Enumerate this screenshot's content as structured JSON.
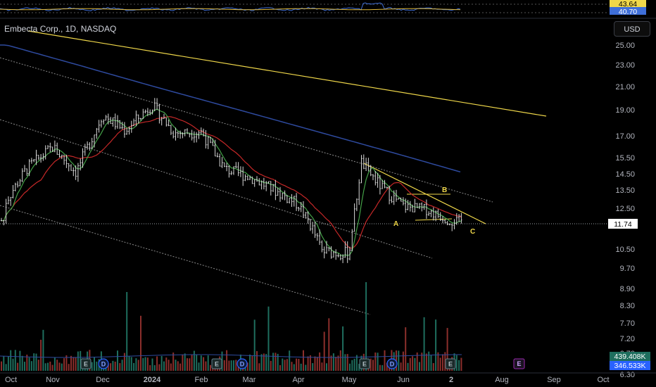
{
  "symbol_title": "Embecta Corp., 1D, NASDAQ",
  "currency_button": "USD",
  "colors": {
    "background": "#000000",
    "up": "#26a69a",
    "down": "#ef5350",
    "ma_fast": "#43a047",
    "ma_mid": "#c62828",
    "ma_slow": "#2e4a9e",
    "trendline": "#f0d84a",
    "rsi": "#3f6fd9",
    "rsi_alt": "#e0b93b"
  },
  "rsi_panel": {
    "tag_values": [
      "43.64",
      "40.70"
    ]
  },
  "chart_data": {
    "type": "candlestick",
    "title": "Embecta Corp., 1D, NASDAQ",
    "y_axis_ticks": [
      "25.00",
      "23.00",
      "21.00",
      "19.00",
      "17.00",
      "15.50",
      "14.50",
      "13.50",
      "12.50",
      "11.50",
      "10.50",
      "9.70",
      "8.90",
      "8.30",
      "7.70",
      "7.20",
      "6.70",
      "6.30"
    ],
    "y_scale": "log",
    "ylim": [
      6.3,
      26.3
    ],
    "x_axis_ticks": [
      "Oct",
      "Nov",
      "Dec",
      "2024",
      "Feb",
      "Mar",
      "Apr",
      "May",
      "Jun",
      "2",
      "Aug",
      "Sep",
      "Oct"
    ],
    "last_price": "11.74",
    "volume_tags": [
      "439.408K",
      "346.533K"
    ],
    "annotations": [
      "A",
      "B",
      "C"
    ],
    "event_markers": [
      "E",
      "D",
      "E",
      "D",
      "E",
      "D",
      "E"
    ],
    "price_path_keypoints": [
      {
        "date": "2023-10-01",
        "close": 12.8
      },
      {
        "date": "2023-10-15",
        "close": 14.8
      },
      {
        "date": "2023-11-01",
        "close": 16.2
      },
      {
        "date": "2023-11-15",
        "close": 14.6
      },
      {
        "date": "2023-12-01",
        "close": 18.6
      },
      {
        "date": "2023-12-15",
        "close": 17.4
      },
      {
        "date": "2024-01-01",
        "close": 19.4
      },
      {
        "date": "2024-01-15",
        "close": 17.2
      },
      {
        "date": "2024-02-01",
        "close": 17.3
      },
      {
        "date": "2024-02-15",
        "close": 14.8
      },
      {
        "date": "2024-03-01",
        "close": 14.3
      },
      {
        "date": "2024-03-15",
        "close": 13.6
      },
      {
        "date": "2024-04-01",
        "close": 12.7
      },
      {
        "date": "2024-04-15",
        "close": 10.4
      },
      {
        "date": "2024-05-01",
        "close": 10.3
      },
      {
        "date": "2024-05-08",
        "close": 15.2
      },
      {
        "date": "2024-05-20",
        "close": 13.6
      },
      {
        "date": "2024-06-01",
        "close": 12.6
      },
      {
        "date": "2024-06-15",
        "close": 12.4
      },
      {
        "date": "2024-06-30",
        "close": 11.7
      }
    ]
  }
}
